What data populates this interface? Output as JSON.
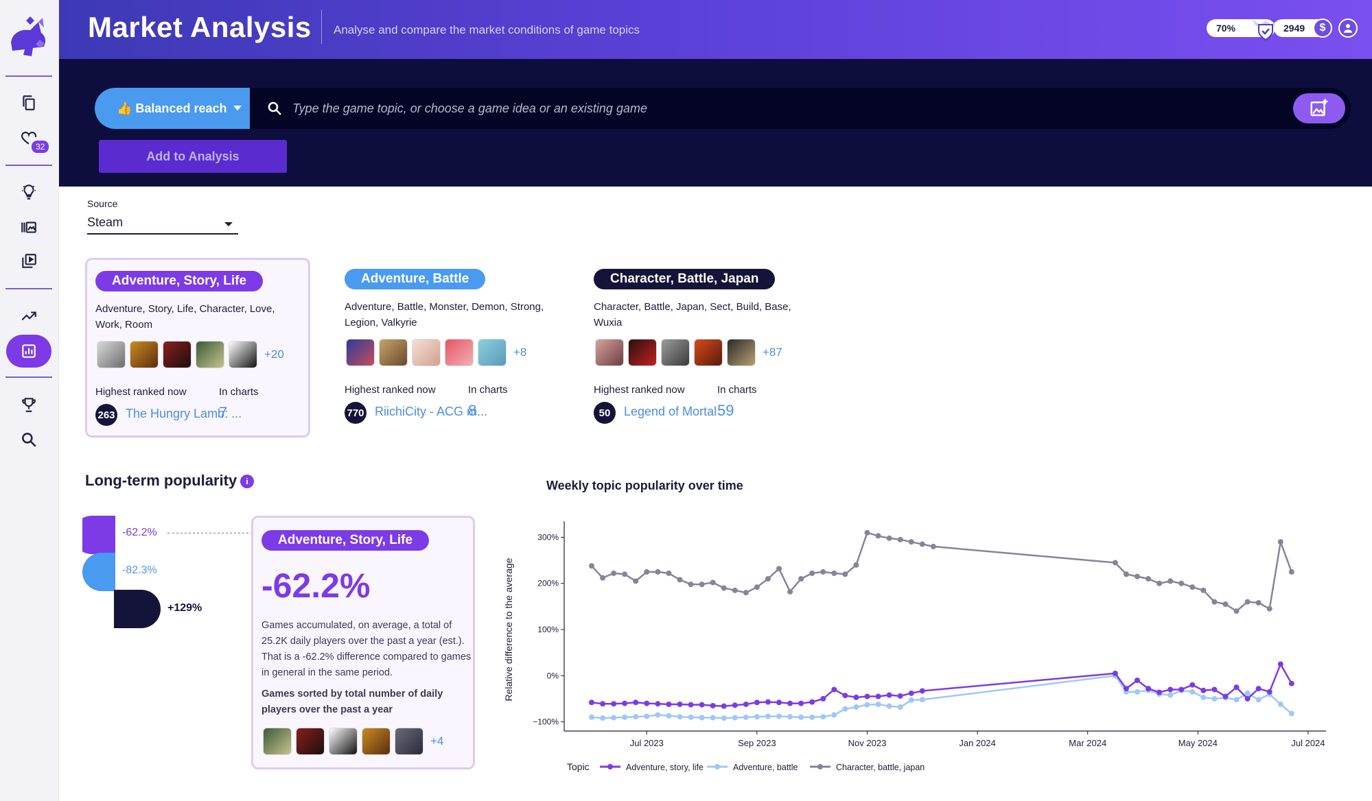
{
  "header": {
    "title": "Market Analysis",
    "subtitle": "Analyse and compare the market conditions of game topics",
    "progress_label": "70%",
    "progress_value": 0.7,
    "credits": "2949"
  },
  "sidebar": {
    "favorites_count": "32",
    "items": [
      {
        "icon": "copy-icon"
      },
      {
        "icon": "heart-icon"
      },
      {
        "icon": "lightbulb-icon"
      },
      {
        "icon": "library-icon"
      },
      {
        "icon": "video-library-icon"
      },
      {
        "icon": "trending-icon"
      },
      {
        "icon": "analytics-icon"
      },
      {
        "icon": "trophy-icon"
      },
      {
        "icon": "search-icon"
      }
    ]
  },
  "search": {
    "mode_label": "👍 Balanced reach",
    "placeholder": "Type the game topic, or choose a game idea or an existing game",
    "value": "",
    "add_button": "Add to Analysis"
  },
  "source": {
    "label": "Source",
    "value": "Steam"
  },
  "topics": [
    {
      "name": "Adventure, Story, Life",
      "color": "#7c3be6",
      "tags": "Adventure, Story, Life, Character, Love, Work, Room",
      "more": "+20",
      "highest_label": "Highest ranked now",
      "rank": "263",
      "game": "The Hungry Lamb: ...",
      "charts_label": "In charts",
      "in_charts": "7"
    },
    {
      "name": "Adventure, Battle",
      "color": "#4a9af0",
      "tags": "Adventure, Battle, Monster, Demon, Strong, Legion, Valkyrie",
      "more": "+8",
      "highest_label": "Highest ranked now",
      "rank": "770",
      "game": "RiichiCity - ACG m...",
      "charts_label": "In charts",
      "in_charts": "8"
    },
    {
      "name": "Character, Battle, Japan",
      "color": "#14143a",
      "tags": "Character, Battle, Japan, Sect, Build, Base, Wuxia",
      "more": "+87",
      "highest_label": "Highest ranked now",
      "rank": "50",
      "game": "Legend of Mortal",
      "charts_label": "In charts",
      "in_charts": "59"
    }
  ],
  "longterm": {
    "title": "Long-term popularity",
    "info": "i",
    "items": [
      {
        "value": "-62.2%",
        "color": "#7c3be6"
      },
      {
        "value": "-82.3%",
        "color": "#4a9af0"
      },
      {
        "value": "+129%",
        "color": "#14143a"
      }
    ],
    "detail": {
      "chip": "Adventure, Story, Life",
      "big": "-62.2%",
      "desc": "Games accumulated, on average, a total of 25.2K daily players over the past a year (est.). That is a -62.2% difference compared to games in general in the same period.",
      "sub": "Games sorted by total number of daily players over the past a year",
      "more": "+4"
    }
  },
  "chart_data": {
    "type": "line",
    "title": "Weekly topic popularity over time",
    "ylabel": "Relative difference to the average",
    "ylim": [
      -120,
      320
    ],
    "yticks": [
      -100,
      0,
      100,
      200,
      300
    ],
    "ytick_labels": [
      "−100%",
      "0%",
      "100%",
      "200%",
      "300%"
    ],
    "x_ticks": [
      "Jul 2023",
      "Sep 2023",
      "Nov 2023",
      "Jan 2024",
      "Mar 2024",
      "May 2024",
      "Jul 2024"
    ],
    "x_tick_pos": [
      1,
      3,
      5,
      7,
      9,
      11,
      13
    ],
    "xlim": [
      0,
      13.2
    ],
    "legend_title": "Topic",
    "series": [
      {
        "name": "Adventure, story, life",
        "color": "#7c3be6",
        "x": [
          0.0,
          0.2,
          0.4,
          0.6,
          0.8,
          1.0,
          1.2,
          1.4,
          1.6,
          1.8,
          2.0,
          2.2,
          2.4,
          2.6,
          2.8,
          3.0,
          3.2,
          3.4,
          3.6,
          3.8,
          4.0,
          4.2,
          4.4,
          4.6,
          4.8,
          5.0,
          5.2,
          5.4,
          5.6,
          5.8,
          6.0,
          9.5,
          9.7,
          9.9,
          10.1,
          10.3,
          10.5,
          10.7,
          10.9,
          11.1,
          11.3,
          11.5,
          11.7,
          11.9,
          12.1,
          12.3,
          12.5,
          12.7
        ],
        "values": [
          -58,
          -61,
          -61,
          -60,
          -58,
          -60,
          -61,
          -62,
          -62,
          -63,
          -63,
          -65,
          -66,
          -64,
          -62,
          -58,
          -57,
          -58,
          -60,
          -60,
          -57,
          -50,
          -30,
          -43,
          -47,
          -45,
          -45,
          -42,
          -44,
          -38,
          -33,
          5,
          -28,
          -10,
          -28,
          -36,
          -30,
          -30,
          -20,
          -32,
          -30,
          -45,
          -25,
          -50,
          -28,
          -35,
          25,
          -17
        ]
      },
      {
        "name": "Adventure, battle",
        "color": "#9fc8f6",
        "x": [
          0.0,
          0.2,
          0.4,
          0.6,
          0.8,
          1.0,
          1.2,
          1.4,
          1.6,
          1.8,
          2.0,
          2.2,
          2.4,
          2.6,
          2.8,
          3.0,
          3.2,
          3.4,
          3.6,
          3.8,
          4.0,
          4.2,
          4.4,
          4.6,
          4.8,
          5.0,
          5.2,
          5.4,
          5.6,
          5.8,
          6.0,
          9.5,
          9.7,
          9.9,
          10.1,
          10.3,
          10.5,
          10.7,
          10.9,
          11.1,
          11.3,
          11.5,
          11.7,
          11.9,
          12.1,
          12.3,
          12.5,
          12.7
        ],
        "values": [
          -90,
          -92,
          -91,
          -90,
          -89,
          -88,
          -85,
          -87,
          -89,
          -90,
          -91,
          -91,
          -92,
          -91,
          -90,
          -89,
          -88,
          -88,
          -89,
          -90,
          -90,
          -89,
          -85,
          -72,
          -68,
          -63,
          -62,
          -66,
          -68,
          -53,
          -52,
          0,
          -35,
          -35,
          -32,
          -40,
          -42,
          -32,
          -35,
          -47,
          -50,
          -48,
          -52,
          -38,
          -52,
          -40,
          -62,
          -82
        ]
      },
      {
        "name": "Character, battle, japan",
        "color": "#85849a",
        "x": [
          0.0,
          0.2,
          0.4,
          0.6,
          0.8,
          1.0,
          1.2,
          1.4,
          1.6,
          1.8,
          2.0,
          2.2,
          2.4,
          2.6,
          2.8,
          3.0,
          3.2,
          3.4,
          3.6,
          3.8,
          4.0,
          4.2,
          4.4,
          4.6,
          4.8,
          5.0,
          5.2,
          5.4,
          5.6,
          5.8,
          6.0,
          6.2,
          9.5,
          9.7,
          9.9,
          10.1,
          10.3,
          10.5,
          10.7,
          10.9,
          11.1,
          11.3,
          11.5,
          11.7,
          11.9,
          12.1,
          12.3,
          12.5,
          12.7
        ],
        "values": [
          238,
          212,
          222,
          220,
          205,
          225,
          225,
          222,
          208,
          198,
          198,
          202,
          190,
          185,
          180,
          192,
          210,
          232,
          182,
          210,
          222,
          225,
          222,
          220,
          240,
          310,
          303,
          298,
          295,
          290,
          285,
          280,
          245,
          220,
          215,
          210,
          200,
          205,
          200,
          192,
          185,
          160,
          155,
          140,
          160,
          158,
          145,
          290,
          225
        ]
      }
    ]
  }
}
